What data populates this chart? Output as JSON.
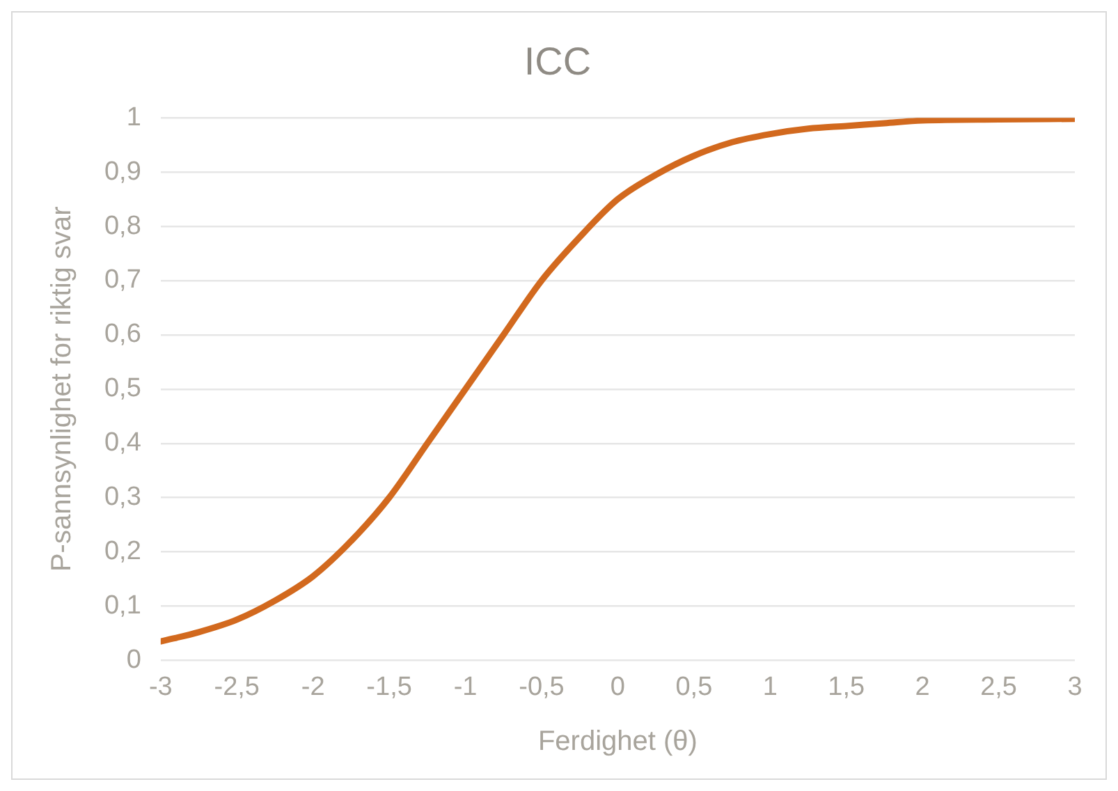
{
  "chart_data": {
    "type": "line",
    "title": "ICC",
    "xlabel": "Ferdighet (θ)",
    "ylabel": "P-sannsynlighet for riktig svar",
    "x": [
      -3,
      -2.75,
      -2.5,
      -2.25,
      -2,
      -1.75,
      -1.5,
      -1.25,
      -1,
      -0.75,
      -0.5,
      -0.25,
      0,
      0.25,
      0.5,
      0.75,
      1,
      1.25,
      1.5,
      1.75,
      2,
      2.5,
      3
    ],
    "series": [
      {
        "color": "#d2691e",
        "values": [
          0.035,
          0.052,
          0.075,
          0.11,
          0.155,
          0.22,
          0.3,
          0.4,
          0.5,
          0.6,
          0.7,
          0.78,
          0.85,
          0.895,
          0.93,
          0.955,
          0.97,
          0.98,
          0.985,
          0.99,
          0.995,
          0.997,
          0.998
        ]
      }
    ],
    "xlim": [
      -3,
      3
    ],
    "xticks": [
      -3,
      {
        "value": -2.5,
        "label": "-2,5"
      },
      -2,
      {
        "value": -1.5,
        "label": "-1,5"
      },
      -1,
      {
        "value": -0.5,
        "label": "-0,5"
      },
      0,
      {
        "value": 0.5,
        "label": "0,5"
      },
      1,
      {
        "value": 1.5,
        "label": "1,5"
      },
      2,
      {
        "value": 2.5,
        "label": "2,5"
      },
      3
    ],
    "ylim": [
      0,
      1
    ],
    "yticks": [
      0,
      {
        "value": 0.1,
        "label": "0,1"
      },
      {
        "value": 0.2,
        "label": "0,2"
      },
      {
        "value": 0.3,
        "label": "0,3"
      },
      {
        "value": 0.4,
        "label": "0,4"
      },
      {
        "value": 0.5,
        "label": "0,5"
      },
      {
        "value": 0.6,
        "label": "0,6"
      },
      {
        "value": 0.7,
        "label": "0,7"
      },
      {
        "value": 0.8,
        "label": "0,8"
      },
      {
        "value": 0.9,
        "label": "0,9"
      },
      1
    ],
    "grid": "y",
    "marker": "none",
    "line_style": "solid",
    "legend": false
  }
}
